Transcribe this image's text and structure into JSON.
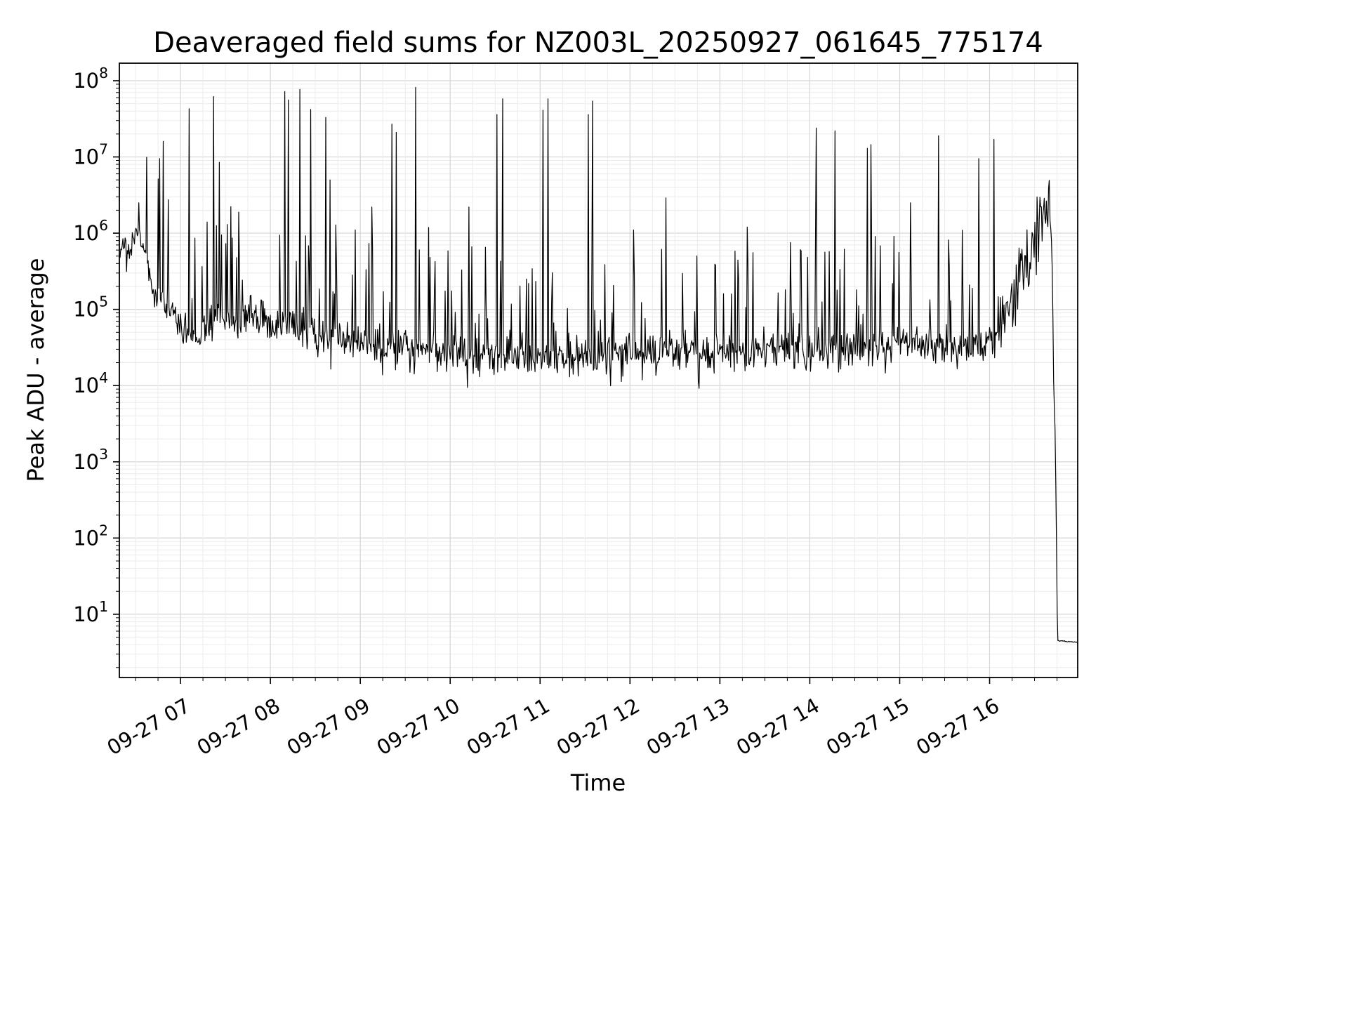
{
  "chart_data": {
    "type": "line",
    "title": "Deaveraged field sums for NZ003L_20250927_061645_775174",
    "xlabel": "Time",
    "ylabel": "Peak ADU - average",
    "series_name": "peak-adu-minus-average",
    "x_domain_hours": [
      6.32,
      16.98
    ],
    "y_log_domain": [
      0.17,
      8.23
    ],
    "x_ticks": [
      {
        "t": 7,
        "label": "09-27 07"
      },
      {
        "t": 8,
        "label": "09-27 08"
      },
      {
        "t": 9,
        "label": "09-27 09"
      },
      {
        "t": 10,
        "label": "09-27 10"
      },
      {
        "t": 11,
        "label": "09-27 11"
      },
      {
        "t": 12,
        "label": "09-27 12"
      },
      {
        "t": 13,
        "label": "09-27 13"
      },
      {
        "t": 14,
        "label": "09-27 14"
      },
      {
        "t": 15,
        "label": "09-27 15"
      },
      {
        "t": 16,
        "label": "09-27 16"
      }
    ],
    "y_tick_exponents": [
      1,
      2,
      3,
      4,
      5,
      6,
      7,
      8
    ],
    "colors": {
      "line": "#000000",
      "grid_major": "#d8d8d8",
      "grid_minor": "#ebebeb",
      "axis": "#000000",
      "background": "#ffffff",
      "text": "#000000"
    },
    "grid": {
      "major": true,
      "minor": true,
      "legend": "none"
    },
    "baseline_points": [
      [
        6.32,
        600000
      ],
      [
        6.38,
        750000
      ],
      [
        6.43,
        550000
      ],
      [
        6.47,
        800000
      ],
      [
        6.52,
        1000000
      ],
      [
        6.57,
        700000
      ],
      [
        6.62,
        400000
      ],
      [
        6.7,
        220000
      ],
      [
        6.8,
        140000
      ],
      [
        6.9,
        100000
      ],
      [
        7.0,
        70000
      ],
      [
        7.1,
        45000
      ],
      [
        7.18,
        38000
      ],
      [
        7.25,
        50000
      ],
      [
        7.32,
        70000
      ],
      [
        7.4,
        100000
      ],
      [
        7.48,
        80000
      ],
      [
        7.56,
        65000
      ],
      [
        7.65,
        70000
      ],
      [
        7.75,
        85000
      ],
      [
        7.85,
        95000
      ],
      [
        7.95,
        75000
      ],
      [
        8.05,
        60000
      ],
      [
        8.15,
        65000
      ],
      [
        8.25,
        60000
      ],
      [
        8.35,
        50000
      ],
      [
        8.45,
        46000
      ],
      [
        8.55,
        50000
      ],
      [
        8.65,
        42000
      ],
      [
        8.75,
        40000
      ],
      [
        8.85,
        38000
      ],
      [
        9.0,
        36000
      ],
      [
        9.2,
        34000
      ],
      [
        9.4,
        32000
      ],
      [
        9.6,
        30000
      ],
      [
        9.8,
        29000
      ],
      [
        10.0,
        28000
      ],
      [
        10.3,
        26000
      ],
      [
        10.6,
        25000
      ],
      [
        11.0,
        24500
      ],
      [
        11.4,
        24000
      ],
      [
        11.8,
        25000
      ],
      [
        12.2,
        26000
      ],
      [
        12.6,
        28000
      ],
      [
        13.0,
        30000
      ],
      [
        13.4,
        30000
      ],
      [
        13.8,
        31000
      ],
      [
        14.2,
        32000
      ],
      [
        14.6,
        33000
      ],
      [
        15.0,
        34000
      ],
      [
        15.4,
        34000
      ],
      [
        15.8,
        35000
      ],
      [
        16.0,
        40000
      ],
      [
        16.1,
        55000
      ],
      [
        16.2,
        100000
      ],
      [
        16.3,
        200000
      ],
      [
        16.4,
        380000
      ],
      [
        16.48,
        650000
      ],
      [
        16.56,
        900000
      ],
      [
        16.62,
        1300000
      ],
      [
        16.66,
        1500000
      ],
      [
        16.685,
        1100000
      ],
      [
        16.7,
        250000
      ],
      [
        16.71,
        15000
      ],
      [
        16.718,
        5600
      ],
      [
        16.725,
        4800
      ],
      [
        16.732,
        1300
      ],
      [
        16.745,
        70
      ],
      [
        16.755,
        4.5
      ],
      [
        16.98,
        4.3
      ]
    ],
    "spikes": [
      [
        6.54,
        2500000
      ],
      [
        6.77,
        9500000
      ],
      [
        6.81,
        16000000
      ],
      [
        7.1,
        43000000
      ],
      [
        7.3,
        1400000
      ],
      [
        7.37,
        62000000
      ],
      [
        7.43,
        8500000
      ],
      [
        7.52,
        1300000
      ],
      [
        8.16,
        72000000
      ],
      [
        8.2,
        56000000
      ],
      [
        8.33,
        77000000
      ],
      [
        8.45,
        42000000
      ],
      [
        8.62,
        33000000
      ],
      [
        8.66,
        5000000
      ],
      [
        9.13,
        2200000
      ],
      [
        9.35,
        27000000
      ],
      [
        9.4,
        21000000
      ],
      [
        9.62,
        82000000
      ],
      [
        10.21,
        2200000
      ],
      [
        10.52,
        36000000
      ],
      [
        10.58,
        58000000
      ],
      [
        11.03,
        41000000
      ],
      [
        11.09,
        58000000
      ],
      [
        11.54,
        36000000
      ],
      [
        11.58,
        54000000
      ],
      [
        12.04,
        1100000
      ],
      [
        12.4,
        2900000
      ],
      [
        13.3,
        1200000
      ],
      [
        14.07,
        24000000
      ],
      [
        14.28,
        22000000
      ],
      [
        14.64,
        13000000
      ],
      [
        14.68,
        14500000
      ],
      [
        15.12,
        2500000
      ],
      [
        15.43,
        19000000
      ],
      [
        15.88,
        9500000
      ],
      [
        16.05,
        17000000
      ]
    ],
    "noise": {
      "seed": 20250927,
      "sample_step_hours": 0.008,
      "dip_prob": 0.06,
      "dip_min": 0.08,
      "dip_max": 0.28,
      "regions": [
        {
          "t0": 6.32,
          "t1": 6.62,
          "amp": 0.07,
          "p": 0.03,
          "smin": 0.2,
          "smax": 0.5
        },
        {
          "t0": 6.62,
          "t1": 16.12,
          "amp": 0.12,
          "p": 0.12,
          "smin": 0.3,
          "smax": 1.45
        },
        {
          "t0": 16.12,
          "t1": 16.68,
          "amp": 0.2,
          "p": 0.3,
          "smin": 0.1,
          "smax": 0.5
        },
        {
          "t0": 16.68,
          "t1": 16.99,
          "amp": 0.003,
          "p": 0.0,
          "smin": 0.0,
          "smax": 0.0
        }
      ]
    }
  }
}
